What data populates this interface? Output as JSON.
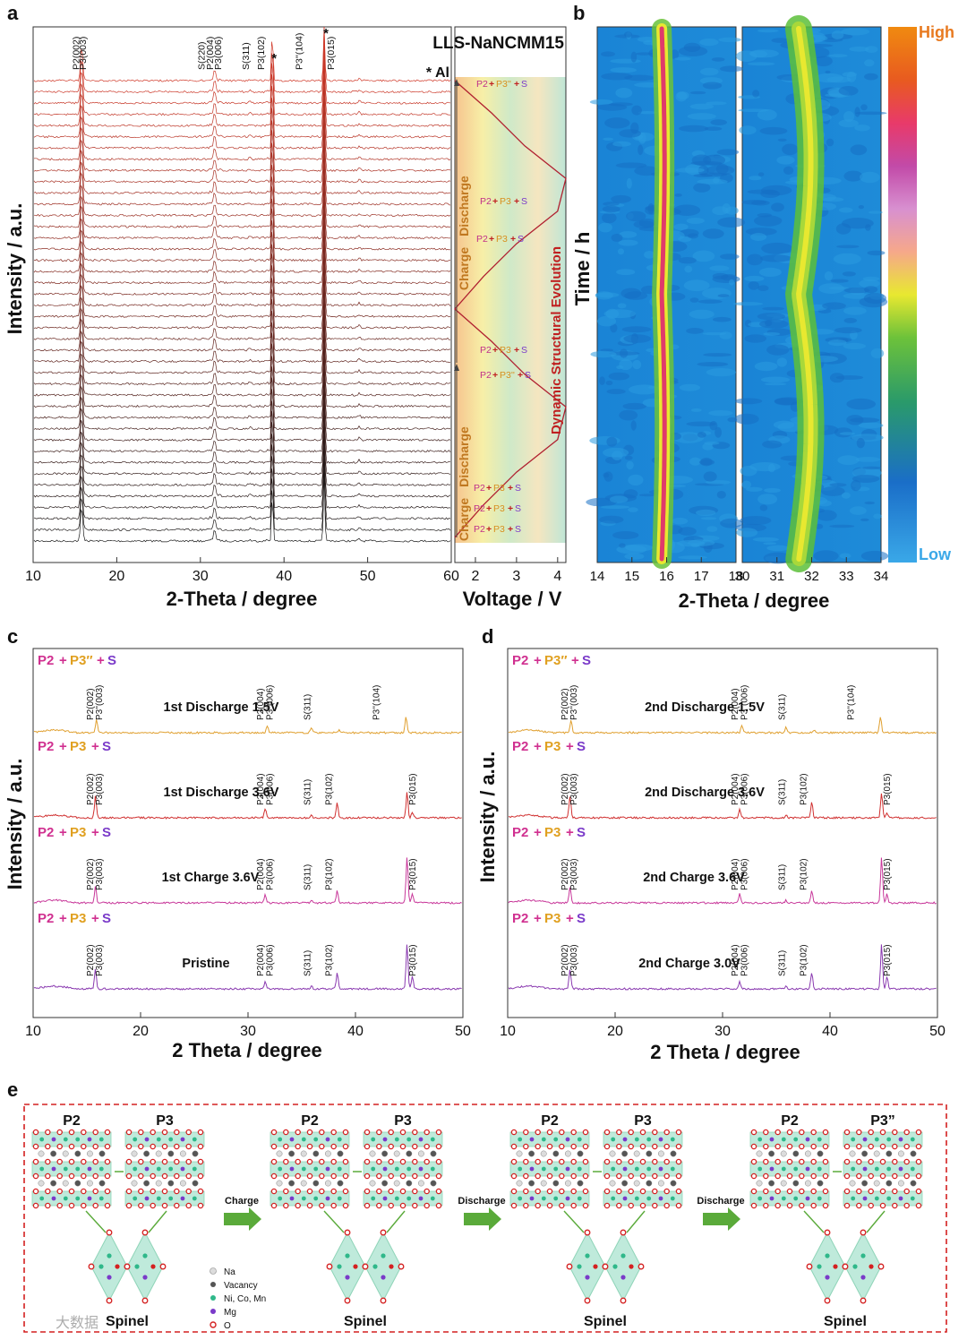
{
  "figure": {
    "panel_a": {
      "letter": "a",
      "title": "LLS-NaNCMM15",
      "al_marker": "* Al",
      "ylabel": "Intensity / a.u.",
      "xlabel": "2-Theta / degree",
      "peaks": [
        "P2(002)",
        "P3(003)",
        "S(220)",
        "P2(004)",
        "P3(006)",
        "S(311)",
        "P3(102)",
        "P3''(104)",
        "P3(015)"
      ],
      "star": "*",
      "right_panel": {
        "xlabel": "Voltage / V",
        "evolution_label": "Dynamic Structural Evolution",
        "charge": "Charge",
        "discharge": "Discharge",
        "p2": "P2",
        "plus": "+",
        "p3": "P3",
        "p3pp": "P3''",
        "s": "S"
      }
    },
    "panel_b": {
      "letter": "b",
      "ylabel": "Time / h",
      "xlabel": "2-Theta / degree",
      "high": "High",
      "low": "Low"
    },
    "panel_c": {
      "letter": "c",
      "ylabel": "Intensity / a.u.",
      "xlabel": "2 Theta / degree",
      "traces": [
        "1st Discharge 1.5V",
        "1st Discharge 3.6V",
        "1st Charge 3.6V",
        "Pristine"
      ]
    },
    "panel_d": {
      "letter": "d",
      "ylabel": "Intensity / a.u.",
      "xlabel": "2 Theta / degree",
      "traces": [
        "2nd Discharge 1.5V",
        "2nd Discharge 3.6V",
        "2nd Charge 3.6V",
        "2nd Charge 3.0V"
      ]
    },
    "panel_e": {
      "letter": "e",
      "p2": "P2",
      "p3": "P3",
      "p3pp": "P3”",
      "spinel": "Spinel",
      "arrows": [
        "Charge",
        "Discharge",
        "Discharge"
      ],
      "legend": [
        "Na",
        "Vacancy",
        "Ni, Co, Mn",
        "Mg",
        "O"
      ],
      "legend_colors": [
        "#dcdcdc",
        "#555555",
        "#2fb88a",
        "#7a3ac9",
        "#d42020"
      ]
    },
    "watermark": "大数据"
  },
  "chart_data": [
    {
      "type": "line",
      "panel": "a",
      "title": "LLS-NaNCMM15",
      "xlabel": "2-Theta / degree",
      "ylabel": "Intensity / a.u.",
      "xlim": [
        10,
        60
      ],
      "xticks": [
        10,
        20,
        30,
        40,
        50,
        60
      ],
      "n_scans": 42,
      "peaks": [
        {
          "label": "P2(002)",
          "x": 15.8
        },
        {
          "label": "P3(003)",
          "x": 16.3
        },
        {
          "label": "S(220)",
          "x": 31.2
        },
        {
          "label": "P2(004)",
          "x": 31.7
        },
        {
          "label": "P3(006)",
          "x": 32.3
        },
        {
          "label": "S(311)",
          "x": 35.9
        },
        {
          "label": "P3(102)",
          "x": 38.0
        },
        {
          "label": "Al *",
          "x": 38.6
        },
        {
          "label": "P3''(104)",
          "x": 41.8
        },
        {
          "label": "Al *",
          "x": 44.8
        },
        {
          "label": "P3(015)",
          "x": 45.3
        },
        {
          "label": "",
          "x": 49.0
        }
      ]
    },
    {
      "type": "line",
      "panel": "a-voltage",
      "xlabel": "Voltage / V",
      "xlim": [
        1.5,
        4.2
      ],
      "xticks": [
        2,
        3,
        4
      ],
      "phase_labels": [
        "P2+P3''+S",
        "P2+P3+S",
        "P2+P3+S",
        "P2+P3+S",
        "P2+P3''+S",
        "P2+P3+S",
        "P2+P3+S",
        "P2+P3+S"
      ],
      "voltage_profile": [
        1.5,
        2.2,
        3.0,
        4.0,
        4.2,
        3.2,
        2.4,
        1.5,
        2.2,
        3.0,
        4.0,
        4.2,
        3.2,
        2.4,
        1.5
      ]
    },
    {
      "type": "heatmap",
      "panel": "b",
      "xlabel": "2-Theta / degree",
      "ylabel": "Time / h",
      "subplots": [
        {
          "xlim": [
            14,
            18
          ],
          "xticks": [
            14,
            15,
            16,
            17,
            18
          ],
          "peak_center": 15.9
        },
        {
          "xlim": [
            30,
            34
          ],
          "xticks": [
            30,
            31,
            32,
            33,
            34
          ],
          "peak_center": 31.8
        }
      ],
      "colorbar": [
        "Low",
        "High"
      ]
    },
    {
      "type": "line",
      "panel": "c",
      "xlabel": "2 Theta / degree",
      "ylabel": "Intensity / a.u.",
      "xlim": [
        10,
        50
      ],
      "xticks": [
        10,
        20,
        30,
        40,
        50
      ],
      "series": [
        {
          "name": "1st Discharge 1.5V",
          "phase": "P2+P3''+S",
          "color": "#e0a030",
          "peaks": [
            15.9,
            31.8,
            35.9,
            38.5,
            44.7
          ]
        },
        {
          "name": "1st Discharge 3.6V",
          "phase": "P2+P3+S",
          "color": "#d03030",
          "peaks": [
            15.8,
            31.6,
            35.9,
            38.3,
            44.8,
            45.3
          ]
        },
        {
          "name": "1st Charge 3.6V",
          "phase": "P2+P3+S",
          "color": "#c8389a",
          "peaks": [
            15.8,
            31.6,
            35.9,
            38.3,
            44.8,
            45.3
          ]
        },
        {
          "name": "Pristine",
          "phase": "P2+P3+S",
          "color": "#8a3ab0",
          "peaks": [
            15.8,
            31.6,
            35.9,
            38.3,
            44.8,
            45.3
          ]
        }
      ]
    },
    {
      "type": "line",
      "panel": "d",
      "xlabel": "2 Theta / degree",
      "ylabel": "Intensity / a.u.",
      "xlim": [
        10,
        50
      ],
      "xticks": [
        10,
        20,
        30,
        40,
        50
      ],
      "series": [
        {
          "name": "2nd Discharge 1.5V",
          "phase": "P2+P3''+S",
          "color": "#e0a030",
          "peaks": [
            15.9,
            31.8,
            35.9,
            38.5,
            44.7
          ]
        },
        {
          "name": "2nd Discharge 3.6V",
          "phase": "P2+P3+S",
          "color": "#d03030",
          "peaks": [
            15.8,
            31.6,
            35.9,
            38.3,
            44.8,
            45.3
          ]
        },
        {
          "name": "2nd Charge 3.6V",
          "phase": "P2+P3+S",
          "color": "#c8389a",
          "peaks": [
            15.8,
            31.6,
            35.9,
            38.3,
            44.8,
            45.3
          ]
        },
        {
          "name": "2nd Charge 3.0V",
          "phase": "P2+P3+S",
          "color": "#8a3ab0",
          "peaks": [
            15.8,
            31.6,
            35.9,
            38.3,
            44.8,
            45.3
          ]
        }
      ]
    }
  ]
}
